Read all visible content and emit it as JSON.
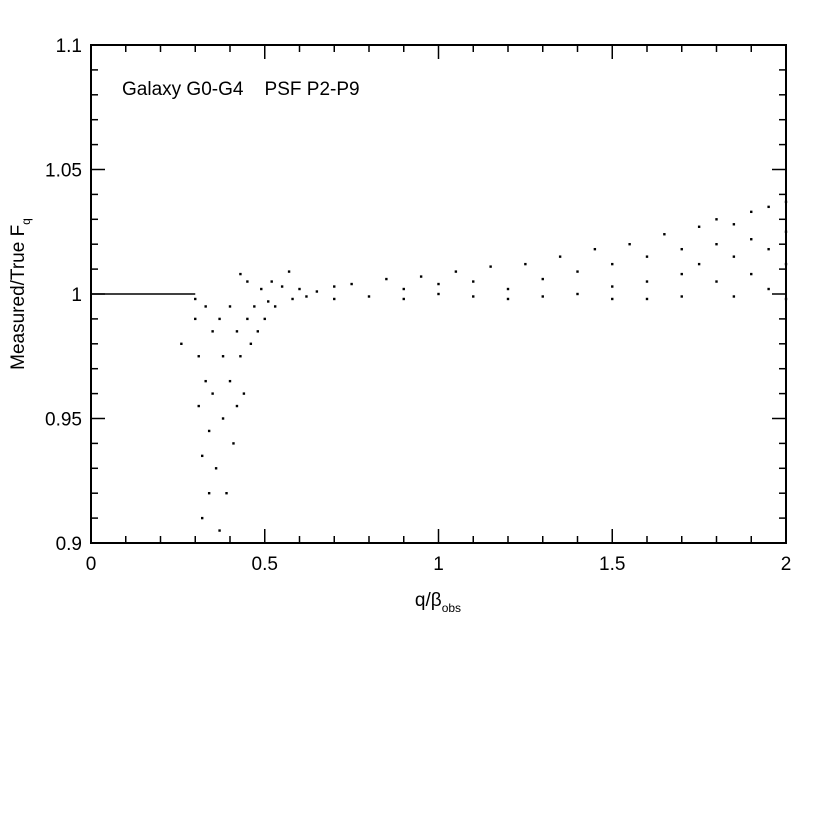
{
  "chart_data": {
    "type": "scatter",
    "annotation": "Galaxy G0-G4    PSF P2-P9",
    "xlabel": "q/β",
    "xlabel_sub": "obs",
    "ylabel": "Measured/True F",
    "ylabel_sub": "q",
    "xlim": [
      0,
      2
    ],
    "ylim": [
      0.9,
      1.1
    ],
    "xticks": [
      0,
      0.5,
      1,
      1.5,
      2
    ],
    "yticks": [
      0.9,
      0.95,
      1,
      1.05,
      1.1
    ],
    "xminorticks": [
      0.1,
      0.2,
      0.3,
      0.4,
      0.6,
      0.7,
      0.8,
      0.9,
      1.1,
      1.2,
      1.3,
      1.4,
      1.6,
      1.7,
      1.8,
      1.9
    ],
    "yminorticks": [
      0.91,
      0.92,
      0.93,
      0.94,
      0.96,
      0.97,
      0.98,
      0.99,
      1.01,
      1.02,
      1.03,
      1.04,
      1.06,
      1.07,
      1.08,
      1.09
    ],
    "color": "#000000",
    "reference_line": {
      "x": [
        0,
        0.3
      ],
      "values": [
        1,
        1
      ]
    },
    "x": [
      0.26,
      0.3,
      0.3,
      0.31,
      0.31,
      0.32,
      0.32,
      0.33,
      0.33,
      0.34,
      0.34,
      0.35,
      0.35,
      0.36,
      0.37,
      0.37,
      0.38,
      0.38,
      0.39,
      0.4,
      0.4,
      0.41,
      0.42,
      0.42,
      0.43,
      0.43,
      0.44,
      0.45,
      0.45,
      0.46,
      0.47,
      0.48,
      0.49,
      0.5,
      0.51,
      0.52,
      0.53,
      0.55,
      0.57,
      0.58,
      0.6,
      0.62,
      0.65,
      0.7,
      0.7,
      0.75,
      0.8,
      0.85,
      0.9,
      0.9,
      0.95,
      1.0,
      1.0,
      1.05,
      1.1,
      1.1,
      1.15,
      1.2,
      1.2,
      1.25,
      1.3,
      1.3,
      1.35,
      1.4,
      1.4,
      1.45,
      1.5,
      1.5,
      1.5,
      1.55,
      1.6,
      1.6,
      1.6,
      1.65,
      1.7,
      1.7,
      1.7,
      1.75,
      1.75,
      1.8,
      1.8,
      1.8,
      1.85,
      1.85,
      1.85,
      1.9,
      1.9,
      1.9,
      1.95,
      1.95,
      1.95,
      2.0,
      2.0,
      2.0,
      2.0
    ],
    "values": [
      0.98,
      0.998,
      0.99,
      0.975,
      0.955,
      0.935,
      0.91,
      0.995,
      0.965,
      0.945,
      0.92,
      0.985,
      0.96,
      0.93,
      0.905,
      0.99,
      0.975,
      0.95,
      0.92,
      0.995,
      0.965,
      0.94,
      0.985,
      0.955,
      1.008,
      0.975,
      0.96,
      0.99,
      1.005,
      0.98,
      0.995,
      0.985,
      1.002,
      0.99,
      0.997,
      1.005,
      0.995,
      1.003,
      1.009,
      0.998,
      1.002,
      0.999,
      1.001,
      1.003,
      0.998,
      1.004,
      0.999,
      1.006,
      1.002,
      0.998,
      1.007,
      1.0,
      1.004,
      1.009,
      0.999,
      1.005,
      1.011,
      1.002,
      0.998,
      1.012,
      1.006,
      0.999,
      1.015,
      1.009,
      1.0,
      1.018,
      1.012,
      1.003,
      0.998,
      1.02,
      1.015,
      1.005,
      0.998,
      1.024,
      1.018,
      1.008,
      0.999,
      1.027,
      1.012,
      1.03,
      1.02,
      1.005,
      1.028,
      1.015,
      0.999,
      1.033,
      1.022,
      1.008,
      1.035,
      1.018,
      1.002,
      1.037,
      1.025,
      1.012,
      0.998
    ]
  }
}
